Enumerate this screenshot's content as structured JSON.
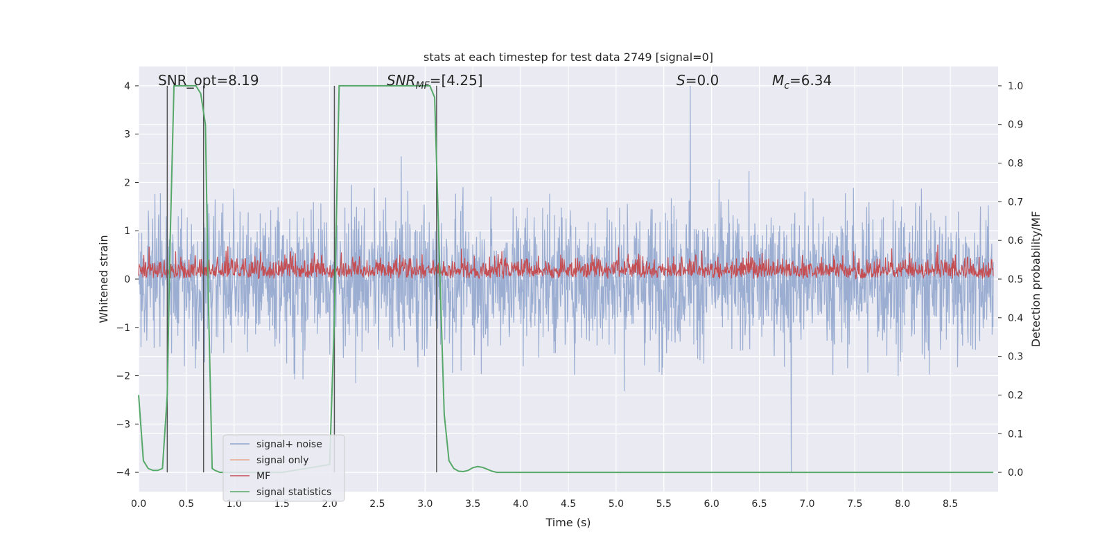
{
  "chart_data": {
    "type": "line",
    "title": "stats at each timestep for test data 2749 [signal=0]",
    "xlabel": "Time (s)",
    "ylabel": "Whitened strain",
    "ylabel_right": "Detection probability/MF",
    "xlim": [
      0.0,
      9.0
    ],
    "ylim": [
      -4.4,
      4.4
    ],
    "ylim_right": [
      -0.05,
      1.05
    ],
    "x_ticks": [
      "0.0",
      "0.5",
      "1.0",
      "1.5",
      "2.0",
      "2.5",
      "3.0",
      "3.5",
      "4.0",
      "4.5",
      "5.0",
      "5.5",
      "6.0",
      "6.5",
      "7.0",
      "7.5",
      "8.0",
      "8.5"
    ],
    "y_ticks": [
      "−4",
      "−3",
      "−2",
      "−1",
      "0",
      "1",
      "2",
      "3",
      "4"
    ],
    "y_ticks_right": [
      "0.0",
      "0.1",
      "0.2",
      "0.3",
      "0.4",
      "0.5",
      "0.6",
      "0.7",
      "0.8",
      "0.9",
      "1.0"
    ],
    "annotations": {
      "snr_opt": "SNR_opt=8.19",
      "snr_mf": "SNR",
      "snr_mf_sub": "MF",
      "snr_mf_value": "=[4.25]",
      "s_label": "S",
      "s_value": "=0.0",
      "mc_label": "M",
      "mc_sub": "c",
      "mc_value": "=6.34"
    },
    "legend": {
      "position": "lower-left",
      "entries": [
        {
          "label": "signal+ noise",
          "color": "#8da3cc"
        },
        {
          "label": "signal only",
          "color": "#e8a88a"
        },
        {
          "label": "MF",
          "color": "#c44e52"
        },
        {
          "label": "signal statistics",
          "color": "#55a868"
        }
      ]
    },
    "series": [
      {
        "name": "signal+ noise",
        "axis": "left",
        "color": "#8da3cc",
        "style": "dense noise trace, approx. amplitude within ±3, peaks to 4.0 near t=5.8 and -4.0 near t=6.85"
      },
      {
        "name": "signal only",
        "axis": "left",
        "color": "#e8a88a",
        "values": []
      },
      {
        "name": "MF",
        "axis": "right",
        "color": "#c44e52",
        "range": [
          0.5,
          0.62
        ],
        "style": "dense noise trace"
      },
      {
        "name": "signal statistics",
        "axis": "right",
        "color": "#55a868",
        "x": [
          0.0,
          0.05,
          0.1,
          0.15,
          0.2,
          0.25,
          0.3,
          0.33,
          0.37,
          0.4,
          0.45,
          0.5,
          0.55,
          0.6,
          0.65,
          0.7,
          0.73,
          0.77,
          0.8,
          0.85,
          0.9,
          1.0,
          1.5,
          2.0,
          2.05,
          2.1,
          2.15,
          2.2,
          2.5,
          3.0,
          3.05,
          3.1,
          3.15,
          3.2,
          3.25,
          3.3,
          3.35,
          3.4,
          3.45,
          3.5,
          3.55,
          3.6,
          3.65,
          3.7,
          3.75,
          4.0,
          5.0,
          6.0,
          7.0,
          8.0,
          8.95
        ],
        "y": [
          0.2,
          0.03,
          0.01,
          0.005,
          0.005,
          0.01,
          0.2,
          0.6,
          1.0,
          1.0,
          1.0,
          1.0,
          1.0,
          1.0,
          0.98,
          0.9,
          0.45,
          0.01,
          0.005,
          0.0,
          0.0,
          0.0,
          0.0,
          0.02,
          0.4,
          1.0,
          1.0,
          1.0,
          1.0,
          1.0,
          1.0,
          0.97,
          0.55,
          0.15,
          0.03,
          0.01,
          0.003,
          0.002,
          0.005,
          0.012,
          0.015,
          0.013,
          0.008,
          0.003,
          0.0,
          0.0,
          0.0,
          0.0,
          0.0,
          0.0,
          0.0
        ]
      }
    ],
    "vertical_lines": [
      0.3,
      0.68,
      2.05,
      3.12
    ]
  }
}
